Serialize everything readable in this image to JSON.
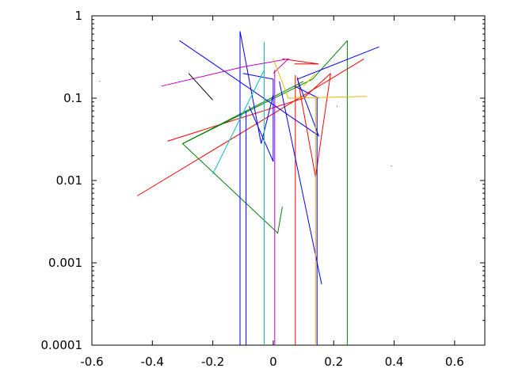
{
  "chart_data": {
    "type": "line",
    "title": "",
    "xlabel": "",
    "ylabel": "",
    "xlim": [
      -0.6,
      0.7
    ],
    "ylim": [
      0.0001,
      1
    ],
    "y_scale": "log",
    "grid": false,
    "legend": "none",
    "x_ticks": [
      -0.6,
      -0.4,
      -0.2,
      0,
      0.2,
      0.4,
      0.6
    ],
    "x_tick_labels": [
      "-0.6",
      "-0.4",
      "-0.2",
      "0",
      "0.2",
      "0.4",
      "0.6"
    ],
    "y_ticks": [
      0.0001,
      0.001,
      0.01,
      0.1,
      1
    ],
    "y_tick_labels": [
      "0.0001",
      "0.001",
      "0.01",
      "0.1",
      "1"
    ],
    "series": [
      {
        "color": "#ff0000",
        "points": [
          [
            -0.45,
            0.0065
          ],
          [
            0.3,
            0.3
          ]
        ]
      },
      {
        "color": "#ff0000",
        "points": [
          [
            0.03,
            0.3
          ],
          [
            0.15,
            0.26
          ],
          [
            0.07,
            0.26
          ]
        ]
      },
      {
        "color": "#ff0000",
        "points": [
          [
            0.08,
            0.18
          ],
          [
            0.14,
            0.011
          ],
          [
            0.19,
            0.2
          ]
        ]
      },
      {
        "color": "#ff0000",
        "points": [
          [
            0.073,
            0.19
          ],
          [
            0.073,
            0.0001
          ]
        ]
      },
      {
        "color": "#ff0000",
        "points": [
          [
            0.19,
            0.2
          ],
          [
            0.1,
            0.1
          ],
          [
            -0.35,
            0.03
          ]
        ]
      },
      {
        "color": "#008000",
        "points": [
          [
            0.245,
            0.5
          ],
          [
            0.245,
            0.0001
          ]
        ]
      },
      {
        "color": "#008000",
        "points": [
          [
            0.245,
            0.5
          ],
          [
            0.13,
            0.17
          ],
          [
            -0.3,
            0.028
          ],
          [
            0.015,
            0.0023
          ],
          [
            0.03,
            0.0048
          ]
        ]
      },
      {
        "color": "#008000",
        "points": [
          [
            -0.3,
            0.028
          ],
          [
            0.1,
            0.16
          ]
        ]
      },
      {
        "color": "#008000",
        "points": [
          [
            0.05,
            0.1
          ],
          [
            0.06,
            0.1
          ]
        ]
      },
      {
        "color": "#0000ff",
        "points": [
          [
            -0.31,
            0.5
          ],
          [
            0.15,
            0.035
          ],
          [
            0.08,
            0.17
          ],
          [
            0.35,
            0.42
          ]
        ]
      },
      {
        "color": "#0000ff",
        "points": [
          [
            -0.11,
            0.65
          ],
          [
            -0.04,
            0.028
          ],
          [
            0.0,
            0.11
          ]
        ]
      },
      {
        "color": "#0000ff",
        "points": [
          [
            -0.1,
            0.2
          ],
          [
            0.0,
            0.17
          ],
          [
            0.0,
            0.017
          ],
          [
            -0.08,
            0.08
          ]
        ]
      },
      {
        "color": "#0000ff",
        "points": [
          [
            -0.11,
            0.65
          ],
          [
            -0.11,
            0.0001
          ]
        ]
      },
      {
        "color": "#0000ff",
        "points": [
          [
            -0.09,
            0.07
          ],
          [
            -0.09,
            0.0001
          ]
        ]
      },
      {
        "color": "#0000ff",
        "points": [
          [
            0.145,
            0.1
          ],
          [
            0.145,
            0.0001
          ]
        ]
      },
      {
        "color": "#0000ff",
        "points": [
          [
            0.15,
            0.1
          ],
          [
            0.07,
            0.14
          ]
        ]
      },
      {
        "color": "#0000ff",
        "points": [
          [
            0.02,
            0.16
          ],
          [
            0.16,
            0.00055
          ]
        ]
      },
      {
        "color": "#00bfbf",
        "points": [
          [
            -0.2,
            0.012
          ],
          [
            -0.03,
            0.22
          ],
          [
            -0.03,
            0.48
          ]
        ]
      },
      {
        "color": "#00bfbf",
        "points": [
          [
            -0.03,
            0.48
          ],
          [
            -0.03,
            0.0001
          ]
        ]
      },
      {
        "color": "#c000c0",
        "points": [
          [
            -0.37,
            0.14
          ],
          [
            -0.1,
            0.24
          ],
          [
            0.05,
            0.3
          ],
          [
            0.0,
            0.2
          ]
        ]
      },
      {
        "color": "#c000c0",
        "points": [
          [
            0.005,
            0.22
          ],
          [
            0.005,
            0.0001
          ]
        ]
      },
      {
        "color": "#e6b800",
        "points": [
          [
            0.0,
            0.3
          ],
          [
            0.05,
            0.1
          ],
          [
            0.31,
            0.105
          ]
        ]
      },
      {
        "color": "#e6b800",
        "points": [
          [
            0.1,
            0.14
          ],
          [
            0.14,
            0.2
          ]
        ]
      },
      {
        "color": "#e6b800",
        "points": [
          [
            0.14,
            0.105
          ],
          [
            0.14,
            0.0001
          ]
        ]
      },
      {
        "color": "#000000",
        "points": [
          [
            -0.28,
            0.2
          ],
          [
            -0.2,
            0.095
          ]
        ]
      },
      {
        "color": "#000000",
        "points": [
          [
            -0.575,
            0.16
          ],
          [
            -0.573,
            0.16
          ]
        ]
      },
      {
        "color": "#000000",
        "points": [
          [
            0.39,
            0.015
          ],
          [
            0.392,
            0.015
          ]
        ]
      },
      {
        "color": "#000000",
        "points": [
          [
            0.21,
            0.08
          ],
          [
            0.212,
            0.08
          ]
        ]
      }
    ]
  }
}
